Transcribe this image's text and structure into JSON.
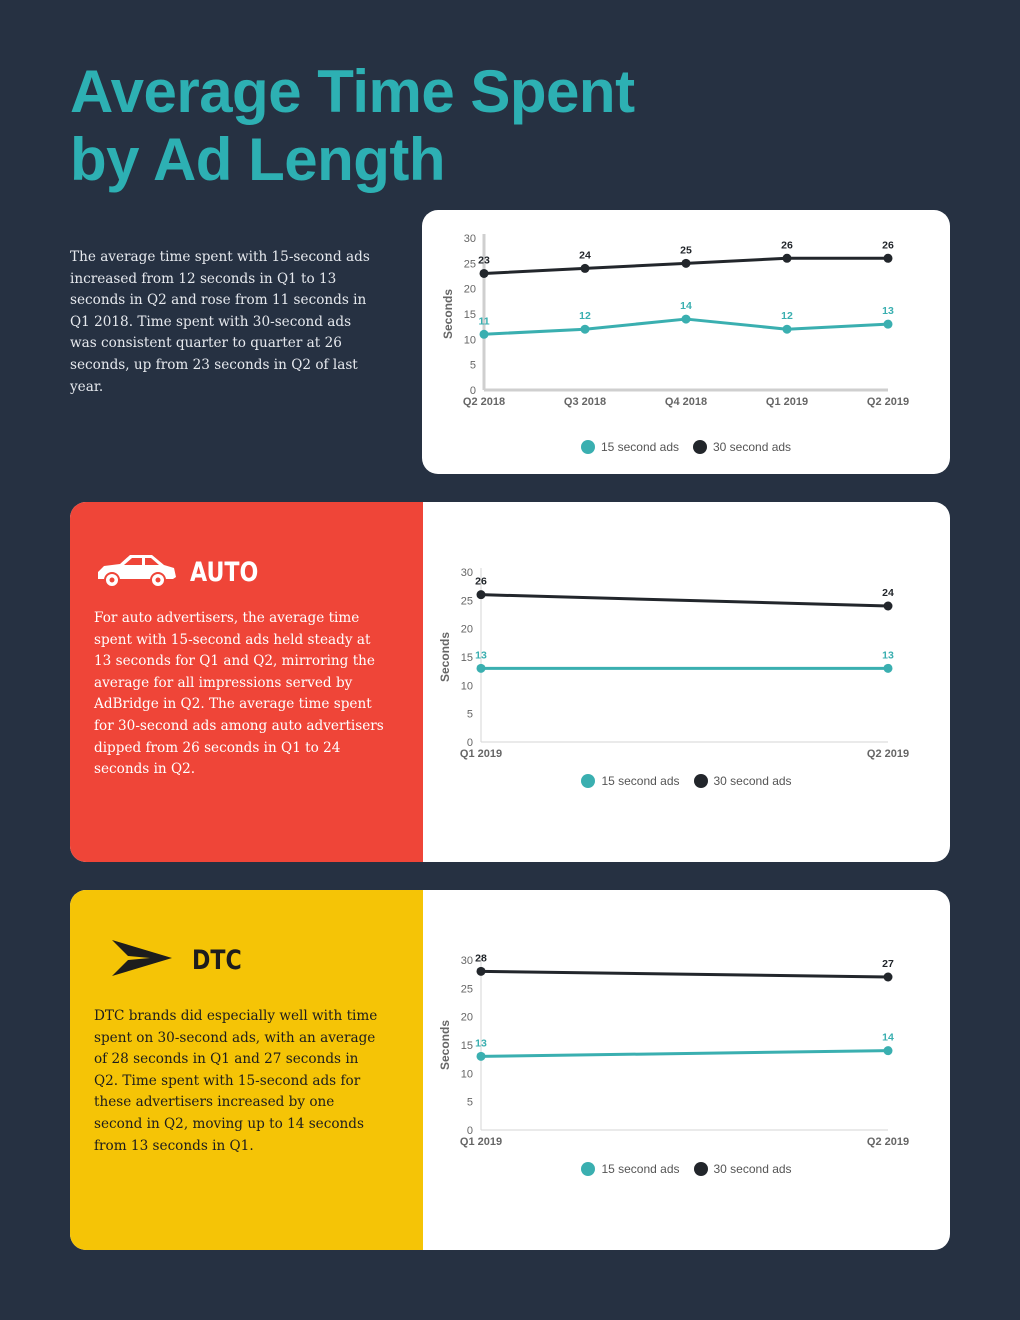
{
  "page": {
    "title_line1": "Average Time Spent",
    "title_line2": "by Ad Length",
    "intro": "The average time spent with 15-second ads increased from 12 seconds in Q1 to 13 seconds in Q2 and rose from 11 seconds in Q1 2018. Time spent with 30-second ads was consistent quarter to quarter at 26 seconds, up from 23 seconds in Q2 of last year."
  },
  "colors": {
    "background": "#263142",
    "title": "#2db0b3",
    "series_15": "#3aafb0",
    "series_30": "#22262b",
    "auto_panel": "#ef4538",
    "dtc_panel": "#f5c406"
  },
  "sections": {
    "auto": {
      "title": "AUTO",
      "icon": "car-icon",
      "text": "For auto advertisers, the average time spent with 15-second ads held steady at 13 seconds for Q1 and Q2, mirroring the average for all impressions served by AdBridge in Q2. The average time spent for 30-second ads among auto advertisers dipped from 26 seconds in Q1 to 24 seconds in Q2."
    },
    "dtc": {
      "title": "DTC",
      "icon": "paper-plane-icon",
      "text": "DTC brands did especially well with time spent on 30-second ads, with an average of 28 seconds in Q1 and 27 seconds in Q2. Time spent with 15-second ads for these advertisers increased by one second in Q2, moving up to 14 seconds from 13 seconds in Q1."
    }
  },
  "chart_data": [
    {
      "type": "line",
      "categories": [
        "Q2 2018",
        "Q3 2018",
        "Q4 2018",
        "Q1 2019",
        "Q2 2019"
      ],
      "series": [
        {
          "name": "15 second ads",
          "values": [
            11,
            12,
            14,
            12,
            13
          ]
        },
        {
          "name": "30 second ads",
          "values": [
            23,
            24,
            25,
            26,
            26
          ]
        }
      ],
      "ylabel": "Seconds",
      "ylim": [
        0,
        30
      ],
      "yticks": [
        0,
        5,
        10,
        15,
        20,
        25,
        30
      ],
      "legend": "bottom",
      "grid": false
    },
    {
      "type": "line",
      "categories": [
        "Q1 2019",
        "Q2 2019"
      ],
      "series": [
        {
          "name": "15 second ads",
          "values": [
            13,
            13
          ]
        },
        {
          "name": "30 second ads",
          "values": [
            26,
            24
          ]
        }
      ],
      "ylabel": "Seconds",
      "ylim": [
        0,
        30
      ],
      "yticks": [
        0,
        5,
        10,
        15,
        20,
        25,
        30
      ],
      "legend": "bottom",
      "grid": false
    },
    {
      "type": "line",
      "categories": [
        "Q1 2019",
        "Q2 2019"
      ],
      "series": [
        {
          "name": "15 second ads",
          "values": [
            13,
            14
          ]
        },
        {
          "name": "30 second ads",
          "values": [
            28,
            27
          ]
        }
      ],
      "ylabel": "Seconds",
      "ylim": [
        0,
        30
      ],
      "yticks": [
        0,
        5,
        10,
        15,
        20,
        25,
        30
      ],
      "legend": "bottom",
      "grid": false
    }
  ]
}
